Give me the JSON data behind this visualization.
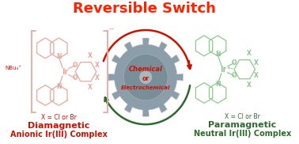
{
  "title": "Reversible Switch",
  "title_color": "#FF2200",
  "title_fontsize": 13,
  "left_label1": "Diamagnetic",
  "left_label2": "Anionic Ir(III) Complex",
  "left_color": "#CC1100",
  "left_x_label": "X = Cl or Br",
  "right_label1": "Paramagnetic",
  "right_label2": "Neutral Ir(III) Complex",
  "right_color": "#2D6A2D",
  "right_x_label": "X = Cl or Br",
  "gear_text1": "Chemical",
  "gear_text2": "or",
  "gear_text3": "Electrochemical",
  "gear_text_color": "#CC1100",
  "gear_color_body": "#8C9EAA",
  "gear_color_inner": "#7A8E9A",
  "gear_color_center": "#A8B8C0",
  "bg_color": "#FFFFFF",
  "arrow_color_top": "#CC1100",
  "arrow_color_bottom": "#2D6A2D",
  "left_struct_color": "#E8A8A0",
  "right_struct_color": "#8EC88E",
  "nbu4_color": "#CC1100"
}
